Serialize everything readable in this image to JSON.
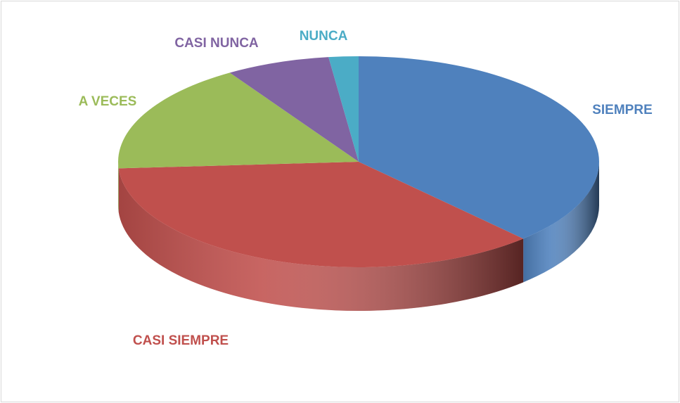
{
  "chart_data": {
    "type": "pie",
    "categories": [
      "SIEMPRE",
      "CASI SIEMPRE",
      "A VECES",
      "CASI NUNCA",
      "NUNCA"
    ],
    "values": [
      38,
      36,
      17,
      7,
      2
    ],
    "colors": [
      "#4f81bd",
      "#c0504d",
      "#9bbb59",
      "#8064a2",
      "#4bacc6"
    ]
  }
}
